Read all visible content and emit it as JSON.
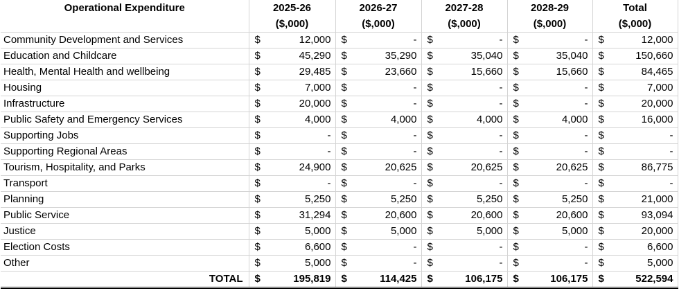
{
  "header": {
    "label": "Operational Expenditure",
    "years": [
      "2025-26",
      "2026-27",
      "2027-28",
      "2028-29",
      "Total"
    ],
    "unit": "($,000)"
  },
  "currency": "$",
  "rows": [
    {
      "label": "Community Development and Services",
      "values": [
        "12,000",
        "-",
        "-",
        "-",
        "12,000"
      ]
    },
    {
      "label": "Education and Childcare",
      "values": [
        "45,290",
        "35,290",
        "35,040",
        "35,040",
        "150,660"
      ]
    },
    {
      "label": "Health, Mental Health and wellbeing",
      "values": [
        "29,485",
        "23,660",
        "15,660",
        "15,660",
        "84,465"
      ]
    },
    {
      "label": "Housing",
      "values": [
        "7,000",
        "-",
        "-",
        "-",
        "7,000"
      ]
    },
    {
      "label": "Infrastructure",
      "values": [
        "20,000",
        "-",
        "-",
        "-",
        "20,000"
      ]
    },
    {
      "label": "Public Safety and Emergency Services",
      "values": [
        "4,000",
        "4,000",
        "4,000",
        "4,000",
        "16,000"
      ]
    },
    {
      "label": "Supporting Jobs",
      "values": [
        "-",
        "-",
        "-",
        "-",
        "-"
      ]
    },
    {
      "label": "Supporting Regional Areas",
      "values": [
        "-",
        "-",
        "-",
        "-",
        "-"
      ]
    },
    {
      "label": "Tourism, Hospitality, and Parks",
      "values": [
        "24,900",
        "20,625",
        "20,625",
        "20,625",
        "86,775"
      ]
    },
    {
      "label": "Transport",
      "values": [
        "-",
        "-",
        "-",
        "-",
        "-"
      ]
    },
    {
      "label": "Planning",
      "values": [
        "5,250",
        "5,250",
        "5,250",
        "5,250",
        "21,000"
      ]
    },
    {
      "label": "Public Service",
      "values": [
        "31,294",
        "20,600",
        "20,600",
        "20,600",
        "93,094"
      ]
    },
    {
      "label": "Justice",
      "values": [
        "5,000",
        "5,000",
        "5,000",
        "5,000",
        "20,000"
      ]
    },
    {
      "label": "Election Costs",
      "values": [
        "6,600",
        "-",
        "-",
        "-",
        "6,600"
      ]
    },
    {
      "label": "Other",
      "values": [
        "5,000",
        "-",
        "-",
        "-",
        "5,000"
      ]
    }
  ],
  "total": {
    "label": "TOTAL",
    "values": [
      "195,819",
      "114,425",
      "106,175",
      "106,175",
      "522,594"
    ]
  }
}
